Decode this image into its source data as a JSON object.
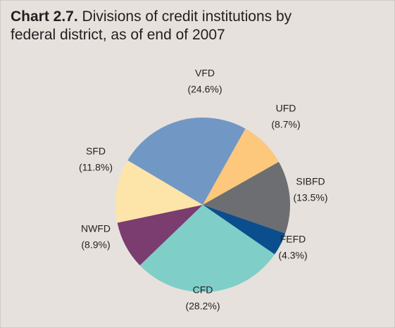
{
  "chart_data": {
    "type": "pie",
    "title_label": "Chart 2.7.",
    "title": "Divisions of credit institutions by federal district, as of end of 2007",
    "categories": [
      "UFD",
      "SIBFD",
      "FEFD",
      "CFD",
      "NWFD",
      "SFD",
      "VFD"
    ],
    "values": [
      8.7,
      13.5,
      4.3,
      28.2,
      8.9,
      11.8,
      24.6
    ],
    "value_labels": [
      "(8.7%)",
      "(13.5%)",
      "(4.3%)",
      "(28.2%)",
      "(8.9%)",
      "(11.8%)",
      "(24.6%)"
    ],
    "colors": [
      "#fdc77c",
      "#6d6e71",
      "#0b4e8d",
      "#7fcec8",
      "#7b3c6f",
      "#fde4a9",
      "#7197c5"
    ]
  }
}
